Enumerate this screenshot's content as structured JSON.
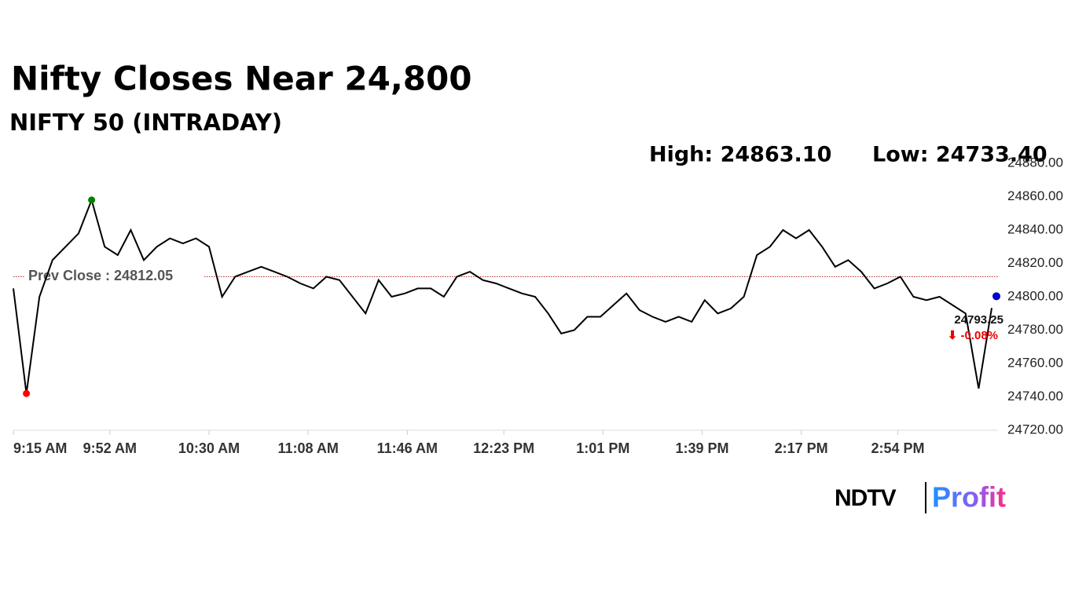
{
  "chart_data": {
    "type": "line",
    "title": "Nifty Closes Near 24,800",
    "subtitle": "NIFTY 50 (INTRADAY)",
    "high_label": "High: 24863.10",
    "low_label": "Low: 24733.40",
    "prev_close": 24812.05,
    "prev_close_label": "Prev Close : 24812.05",
    "last_label": "24793.25",
    "change_label": "⬇ -0.08%",
    "logo": [
      "NDTV",
      "Profit"
    ],
    "x": [
      "9:15 AM",
      "9:20 AM",
      "9:25 AM",
      "9:30 AM",
      "9:35 AM",
      "9:40 AM",
      "9:45 AM",
      "9:50 AM",
      "9:55 AM",
      "10:00 AM",
      "10:05 AM",
      "10:10 AM",
      "10:15 AM",
      "10:20 AM",
      "10:25 AM",
      "10:30 AM",
      "10:35 AM",
      "10:40 AM",
      "10:45 AM",
      "10:50 AM",
      "10:55 AM",
      "11:00 AM",
      "11:05 AM",
      "11:10 AM",
      "11:15 AM",
      "11:20 AM",
      "11:25 AM",
      "11:30 AM",
      "11:35 AM",
      "11:40 AM",
      "11:45 AM",
      "11:50 AM",
      "11:55 AM",
      "12:00 PM",
      "12:05 PM",
      "12:10 PM",
      "12:15 PM",
      "12:20 PM",
      "12:25 PM",
      "12:30 PM",
      "12:35 PM",
      "12:40 PM",
      "12:45 PM",
      "12:50 PM",
      "12:55 PM",
      "1:00 PM",
      "1:05 PM",
      "1:10 PM",
      "1:15 PM",
      "1:20 PM",
      "1:25 PM",
      "1:30 PM",
      "1:35 PM",
      "1:40 PM",
      "1:45 PM",
      "1:50 PM",
      "1:55 PM",
      "2:00 PM",
      "2:05 PM",
      "2:10 PM",
      "2:15 PM",
      "2:20 PM",
      "2:25 PM",
      "2:30 PM",
      "2:35 PM",
      "2:40 PM",
      "2:45 PM",
      "2:50 PM",
      "2:55 PM",
      "3:00 PM",
      "3:05 PM",
      "3:10 PM",
      "3:15 PM",
      "3:20 PM",
      "3:25 PM",
      "3:30 PM"
    ],
    "series": [
      {
        "name": "NIFTY 50",
        "color": "#000000",
        "values": [
          24805,
          24742,
          24800,
          24822,
          24830,
          24838,
          24858,
          24830,
          24825,
          24840,
          24822,
          24830,
          24835,
          24832,
          24835,
          24830,
          24800,
          24812,
          24815,
          24818,
          24815,
          24812,
          24808,
          24805,
          24812,
          24810,
          24800,
          24790,
          24810,
          24800,
          24802,
          24805,
          24805,
          24800,
          24812,
          24815,
          24810,
          24808,
          24805,
          24802,
          24800,
          24790,
          24778,
          24780,
          24788,
          24788,
          24795,
          24802,
          24792,
          24788,
          24785,
          24788,
          24785,
          24798,
          24790,
          24793,
          24800,
          24825,
          24830,
          24840,
          24835,
          24840,
          24830,
          24818,
          24822,
          24815,
          24805,
          24808,
          24812,
          24800,
          24798,
          24800,
          24795,
          24790,
          24745,
          24793.25
        ]
      }
    ],
    "high_color": "#008000",
    "low_color": "#ff0000",
    "last_color": "#0000cc",
    "prev_color": "#b22222",
    "xlim": [
      "9:15 AM",
      "3:30 PM"
    ],
    "xticks": [
      "9:15 AM",
      "9:52 AM",
      "10:30 AM",
      "11:08 AM",
      "11:46 AM",
      "12:23 PM",
      "1:01 PM",
      "1:39 PM",
      "2:17 PM",
      "2:54 PM"
    ],
    "ylim": [
      24720,
      24880
    ],
    "yticks": [
      {
        "value": 24720,
        "label": "24720.00"
      },
      {
        "value": 24740,
        "label": "24740.00"
      },
      {
        "value": 24760,
        "label": "24760.00"
      },
      {
        "value": 24780,
        "label": "24780.00"
      },
      {
        "value": 24800,
        "label": "24800.00"
      },
      {
        "value": 24820,
        "label": "24820.00"
      },
      {
        "value": 24840,
        "label": "24840.00"
      },
      {
        "value": 24860,
        "label": "24860.00"
      },
      {
        "value": 24880,
        "label": "24880.00"
      }
    ]
  }
}
